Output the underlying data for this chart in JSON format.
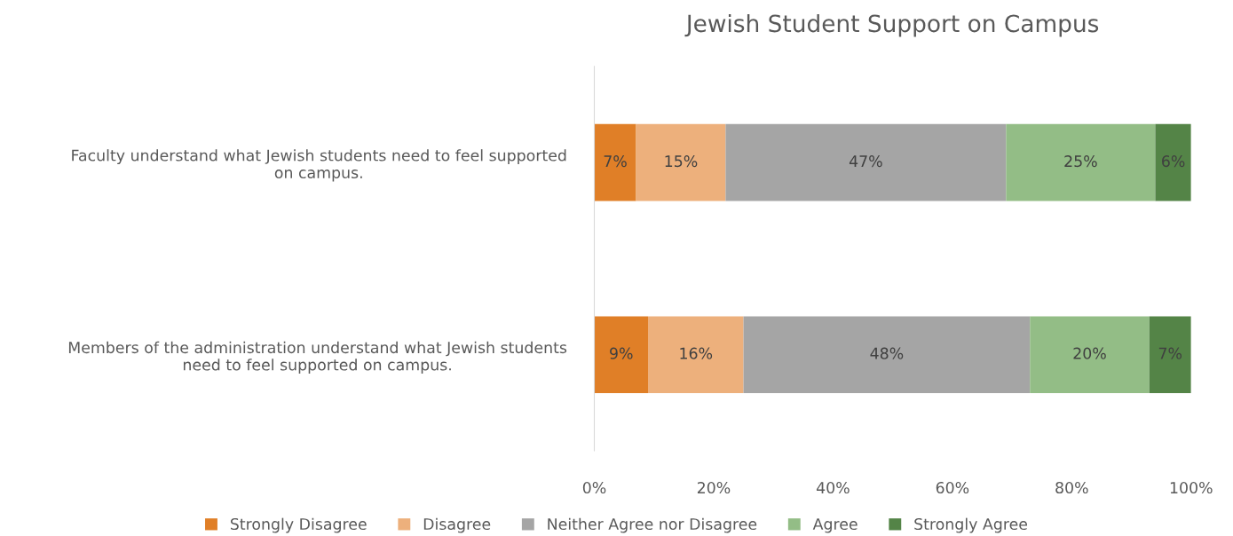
{
  "chart_data": {
    "type": "bar",
    "orientation": "horizontal",
    "stacked": true,
    "title": "Jewish Student Support on Campus",
    "categories": [
      "Faculty understand what Jewish students need to feel supported on campus.",
      "Members of the administration understand what Jewish students need to feel supported on campus."
    ],
    "series": [
      {
        "name": "Strongly Disagree",
        "color": "#e07f27",
        "values": [
          7,
          9
        ],
        "value_labels": [
          "7%",
          "9%"
        ]
      },
      {
        "name": "Disagree",
        "color": "#edb07c",
        "values": [
          15,
          16
        ],
        "value_labels": [
          "15%",
          "16%"
        ]
      },
      {
        "name": "Neither Agree nor Disagree",
        "color": "#a5a5a5",
        "values": [
          47,
          48
        ],
        "value_labels": [
          "47%",
          "48%"
        ]
      },
      {
        "name": "Agree",
        "color": "#93bd86",
        "values": [
          25,
          20
        ],
        "value_labels": [
          "25%",
          "20%"
        ]
      },
      {
        "name": "Strongly Agree",
        "color": "#548447",
        "values": [
          6,
          7
        ],
        "value_labels": [
          "6%",
          "7%"
        ]
      }
    ],
    "xlim": [
      0,
      100
    ],
    "xticks": [
      {
        "value": 0,
        "label": "0%"
      },
      {
        "value": 20,
        "label": "20%"
      },
      {
        "value": 40,
        "label": "40%"
      },
      {
        "value": 60,
        "label": "60%"
      },
      {
        "value": 80,
        "label": "80%"
      },
      {
        "value": 100,
        "label": "100%"
      }
    ],
    "grid": false,
    "legend": "bottom"
  }
}
